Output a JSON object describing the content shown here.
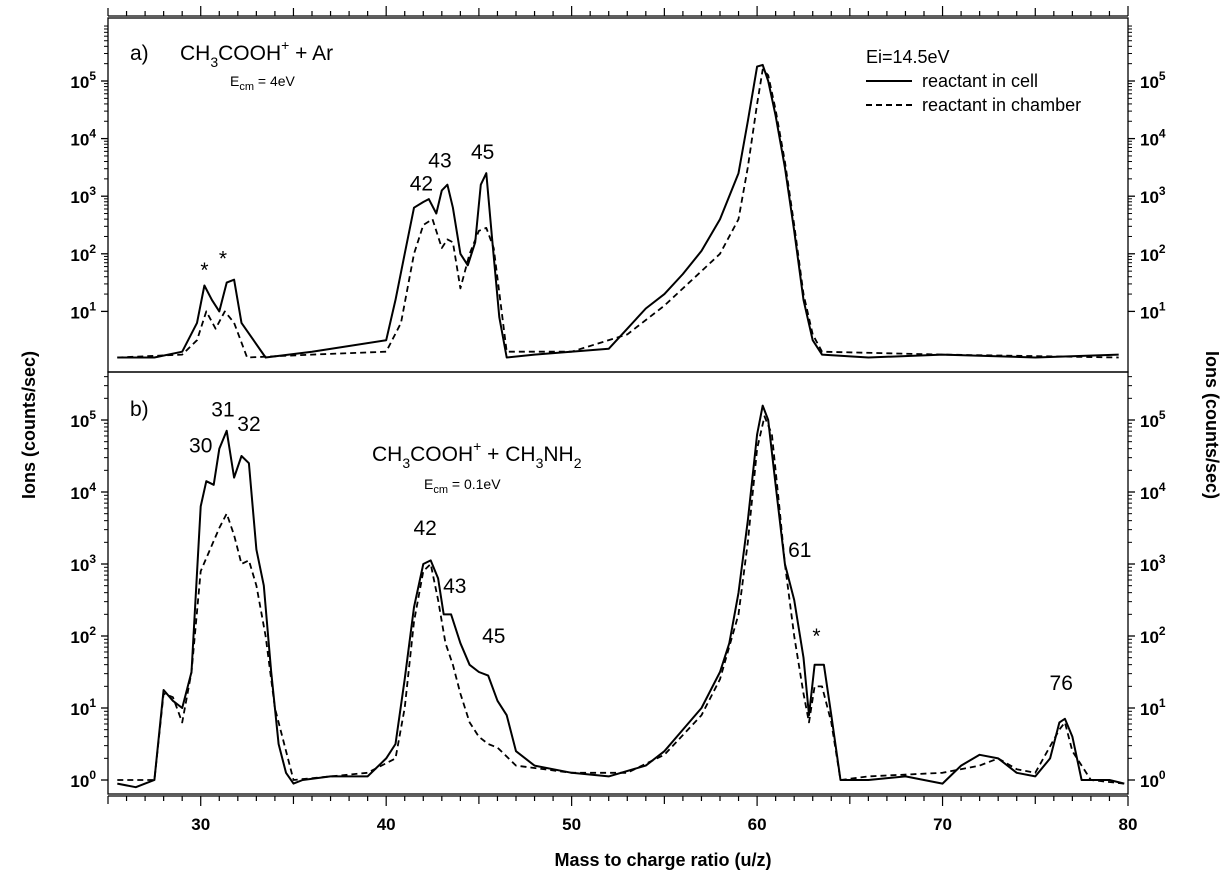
{
  "chart_data": {
    "type": "line",
    "xlabel": "Mass to charge ratio (u/z)",
    "ylabel": "Ions (counts/sec)",
    "xlim": [
      25,
      80
    ],
    "x_ticks": [
      "30",
      "40",
      "50",
      "60",
      "70",
      "80"
    ],
    "y_scale": "log",
    "y_ticks": [
      {
        "base": "10",
        "exp": "0"
      },
      {
        "base": "10",
        "exp": "1"
      },
      {
        "base": "10",
        "exp": "2"
      },
      {
        "base": "10",
        "exp": "3"
      },
      {
        "base": "10",
        "exp": "4"
      },
      {
        "base": "10",
        "exp": "5"
      }
    ],
    "legend": {
      "position": "top-right",
      "header": "Ei=14.5eV",
      "entries": [
        {
          "label": "reactant in cell",
          "style": "solid"
        },
        {
          "label": "reactant in chamber",
          "style": "dashed"
        }
      ]
    },
    "panels": [
      {
        "id": "a",
        "label": "a)",
        "reaction": {
          "prefix": "CH",
          "sub1": "3",
          "mid": "COOH",
          "sup": "+",
          "suffix": " + Ar"
        },
        "energy": {
          "pre": "E",
          "sub": "cm",
          "post": " = 4eV"
        },
        "ylim": [
          0.2,
          5
        ],
        "peak_labels": [
          {
            "text": "*",
            "x": 30.2,
            "y": 1.6
          },
          {
            "text": "*",
            "x": 31.2,
            "y": 1.8
          },
          {
            "text": "42",
            "x": 41.9,
            "y": 3.1
          },
          {
            "text": "43",
            "x": 42.9,
            "y": 3.5
          },
          {
            "text": "45",
            "x": 45.2,
            "y": 3.65
          }
        ],
        "series": [
          {
            "name": "reactant in cell",
            "style": "solid",
            "x": [
              25.5,
              27.5,
              29,
              29.8,
              30.2,
              30.6,
              31.0,
              31.4,
              31.8,
              32.2,
              33.5,
              36,
              40,
              40.5,
              41.0,
              41.5,
              42.0,
              42.3,
              42.7,
              43.0,
              43.3,
              43.6,
              44.0,
              44.4,
              44.8,
              45.1,
              45.4,
              45.7,
              46.1,
              46.5,
              48,
              52,
              53,
              54,
              55,
              56,
              57,
              58,
              59,
              59.5,
              60.0,
              60.3,
              60.6,
              61.0,
              61.5,
              62.0,
              62.5,
              63.0,
              63.5,
              66,
              70,
              75,
              79.5
            ],
            "y": [
              0.2,
              0.2,
              0.3,
              0.8,
              1.45,
              1.2,
              1.0,
              1.5,
              1.55,
              0.8,
              0.2,
              0.3,
              0.5,
              1.2,
              2.0,
              2.8,
              2.9,
              2.95,
              2.7,
              3.1,
              3.2,
              2.8,
              2.0,
              1.8,
              2.2,
              3.2,
              3.4,
              2.3,
              0.9,
              0.2,
              0.25,
              0.35,
              0.7,
              1.05,
              1.3,
              1.65,
              2.05,
              2.6,
              3.4,
              4.3,
              5.25,
              5.28,
              5.0,
              4.4,
              3.5,
              2.4,
              1.2,
              0.5,
              0.25,
              0.2,
              0.25,
              0.2,
              0.25
            ]
          },
          {
            "name": "reactant in chamber",
            "style": "dashed",
            "x": [
              25.5,
              29,
              29.8,
              30.3,
              30.8,
              31.3,
              31.8,
              32.5,
              36,
              40,
              40.8,
              41.5,
              42.0,
              42.5,
              43.0,
              43.3,
              43.6,
              44.0,
              44.5,
              45.0,
              45.4,
              45.8,
              46.5,
              50,
              53,
              55,
              57,
              58,
              59,
              59.5,
              60.0,
              60.3,
              60.6,
              61.0,
              61.5,
              62.0,
              62.5,
              63.0,
              63.5,
              70,
              79.5
            ],
            "y": [
              0.2,
              0.25,
              0.5,
              1.0,
              0.7,
              1.0,
              0.8,
              0.2,
              0.25,
              0.3,
              0.8,
              2.0,
              2.5,
              2.6,
              2.1,
              2.25,
              2.2,
              1.4,
              2.0,
              2.4,
              2.45,
              2.1,
              0.3,
              0.3,
              0.6,
              1.1,
              1.7,
              2.0,
              2.6,
              3.5,
              4.6,
              5.2,
              5.1,
              4.5,
              3.6,
              2.5,
              1.3,
              0.6,
              0.3,
              0.25,
              0.2
            ]
          }
        ]
      },
      {
        "id": "b",
        "label": "b)",
        "reaction": {
          "prefix": "CH",
          "sub1": "3",
          "mid": "COOH",
          "sup": "+",
          "suffix": " + CH",
          "sub2": "3",
          "suffix2": "NH",
          "sub3": "2"
        },
        "energy": {
          "pre": "E",
          "sub": "cm",
          "post": " = 0.1eV"
        },
        "ylim": [
          -0.2,
          5.3
        ],
        "peak_labels": [
          {
            "text": "30",
            "x": 30.0,
            "y": 4.55
          },
          {
            "text": "31",
            "x": 31.2,
            "y": 5.05
          },
          {
            "text": "32",
            "x": 32.6,
            "y": 4.85
          },
          {
            "text": "42",
            "x": 42.1,
            "y": 3.4
          },
          {
            "text": "43",
            "x": 43.7,
            "y": 2.6
          },
          {
            "text": "45",
            "x": 45.8,
            "y": 1.9
          },
          {
            "text": "61",
            "x": 62.3,
            "y": 3.1
          },
          {
            "text": "*",
            "x": 63.2,
            "y": 1.9
          },
          {
            "text": "76",
            "x": 76.4,
            "y": 1.25
          }
        ],
        "series": [
          {
            "name": "reactant in cell",
            "style": "solid",
            "x": [
              25.5,
              26.5,
              27.0,
              27.5,
              28.0,
              28.5,
              29.0,
              29.5,
              30.0,
              30.3,
              30.7,
              31.0,
              31.4,
              31.8,
              32.2,
              32.6,
              33.0,
              33.4,
              33.8,
              34.2,
              34.6,
              35.0,
              35.5,
              37,
              39,
              40.0,
              40.5,
              41.0,
              41.5,
              42.0,
              42.4,
              42.8,
              43.1,
              43.5,
              44.0,
              44.5,
              45.0,
              45.5,
              46.0,
              46.5,
              47.0,
              48,
              50,
              52,
              54,
              55,
              56,
              57,
              58,
              58.5,
              59.0,
              59.5,
              60.0,
              60.3,
              60.6,
              61.0,
              61.5,
              62.0,
              62.5,
              62.8,
              63.1,
              63.6,
              64.0,
              64.5,
              66,
              68,
              70,
              71,
              72,
              73,
              74,
              75,
              75.8,
              76.3,
              76.6,
              77.0,
              77.5,
              79,
              79.8
            ],
            "y": [
              -0.05,
              -0.1,
              -0.05,
              0.0,
              1.25,
              1.1,
              1.0,
              1.5,
              3.8,
              4.15,
              4.1,
              4.6,
              4.85,
              4.2,
              4.5,
              4.4,
              3.2,
              2.7,
              1.5,
              0.5,
              0.1,
              -0.05,
              0.0,
              0.05,
              0.05,
              0.3,
              0.5,
              1.4,
              2.4,
              3.0,
              3.05,
              2.8,
              2.3,
              2.3,
              1.9,
              1.6,
              1.5,
              1.45,
              1.1,
              0.9,
              0.4,
              0.2,
              0.1,
              0.05,
              0.2,
              0.4,
              0.7,
              1.0,
              1.5,
              1.9,
              2.6,
              3.6,
              4.8,
              5.2,
              5.0,
              4.1,
              3.0,
              2.5,
              1.7,
              0.9,
              1.6,
              1.6,
              0.9,
              0.0,
              0.0,
              0.05,
              -0.05,
              0.2,
              0.35,
              0.3,
              0.1,
              0.05,
              0.3,
              0.8,
              0.85,
              0.6,
              0.0,
              0.0,
              -0.05
            ],
            "x_is_mz": true
          },
          {
            "name": "reactant in chamber",
            "style": "dashed",
            "x": [
              25.5,
              27.5,
              28.0,
              28.5,
              29.0,
              29.5,
              30.0,
              30.5,
              31.0,
              31.4,
              31.8,
              32.2,
              32.6,
              33.0,
              33.5,
              34.0,
              35.0,
              37,
              39,
              40.5,
              41.0,
              41.5,
              42.0,
              42.4,
              42.8,
              43.2,
              43.6,
              44.0,
              44.5,
              45.0,
              45.5,
              46.0,
              47.0,
              50,
              53,
              55,
              57,
              58,
              59.0,
              59.5,
              60.0,
              60.4,
              60.8,
              61.2,
              61.5,
              62.0,
              62.5,
              62.8,
              63.1,
              63.5,
              64.0,
              64.5,
              66,
              70,
              72,
              73,
              74,
              75,
              76.3,
              76.6,
              77.0,
              78,
              79.8
            ],
            "y": [
              0.0,
              0.0,
              1.2,
              1.15,
              0.8,
              1.5,
              2.9,
              3.2,
              3.5,
              3.7,
              3.4,
              3.0,
              3.05,
              2.7,
              2.0,
              1.0,
              0.0,
              0.05,
              0.1,
              0.3,
              1.0,
              2.2,
              2.9,
              3.0,
              2.5,
              1.9,
              1.6,
              1.2,
              0.8,
              0.6,
              0.5,
              0.45,
              0.2,
              0.1,
              0.1,
              0.35,
              0.9,
              1.4,
              2.3,
              3.3,
              4.6,
              5.05,
              4.8,
              3.8,
              3.0,
              2.0,
              1.2,
              0.8,
              1.3,
              1.3,
              0.8,
              0.0,
              0.05,
              0.1,
              0.2,
              0.3,
              0.15,
              0.1,
              0.7,
              0.8,
              0.4,
              0.0,
              -0.05
            ]
          }
        ]
      }
    ]
  }
}
